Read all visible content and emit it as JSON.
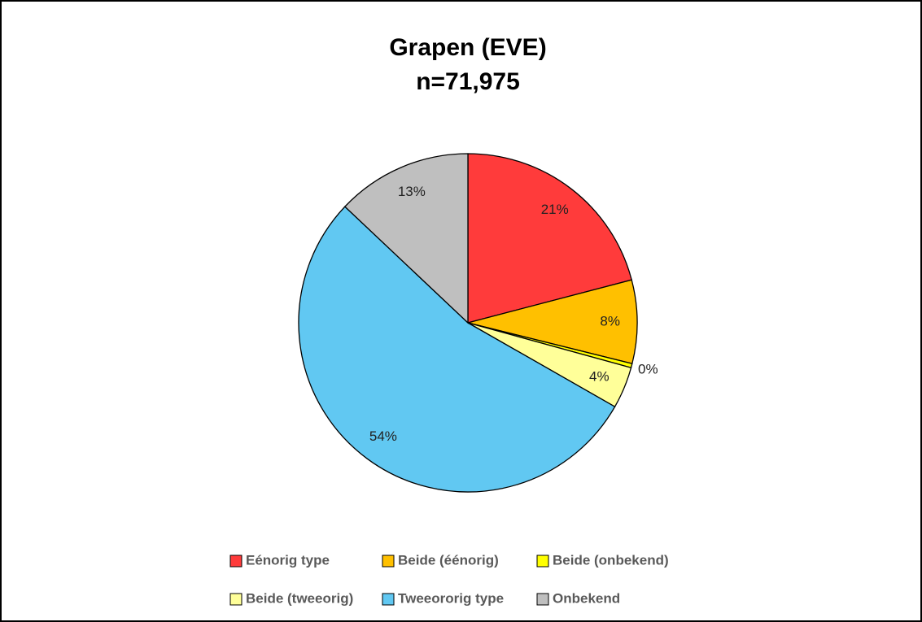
{
  "chart_data": {
    "type": "pie",
    "title": "Grapen (EVE)",
    "subtitle": "n=71,975",
    "categories": [
      "Eénorig type",
      "Beide (éénorig)",
      "Beide (onbekend)",
      "Beide (tweeorig)",
      "Tweeororig type",
      "Onbekend"
    ],
    "values": [
      21,
      8,
      0.4,
      4,
      54,
      13
    ],
    "value_labels": [
      "21%",
      "8%",
      "0%",
      "4%",
      "54%",
      "13%"
    ],
    "colors": [
      "#ff3b3b",
      "#ffc000",
      "#ffff00",
      "#ffff99",
      "#61c8f2",
      "#bfbfbf"
    ],
    "legend": "bottom"
  }
}
